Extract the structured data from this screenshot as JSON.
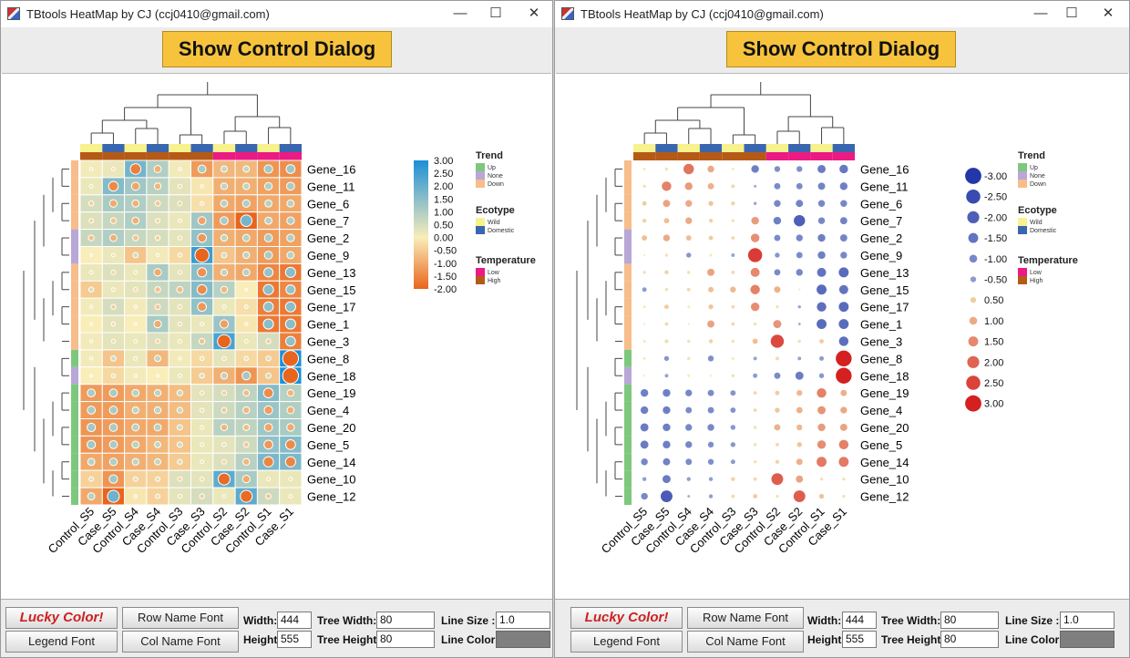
{
  "windows": [
    {
      "title": "TBtools HeatMap by CJ (ccj0410@gmail.com)",
      "show_button": "Show Control Dialog",
      "controls": {
        "lucky": "Lucky Color!",
        "legend_font": "Legend Font",
        "row_font": "Row Name Font",
        "col_font": "Col Name Font",
        "width_label": "Width:",
        "width_value": "444",
        "height_label": "Height:",
        "height_value": "555",
        "tree_width_label": "Tree Width:",
        "tree_width_value": "80",
        "tree_height_label": "Tree Height:",
        "tree_height_value": "80",
        "line_size_label": "Line Size :",
        "line_size_value": "1.0",
        "line_color_label": "Line Color:"
      }
    },
    {
      "title": "TBtools HeatMap by CJ (ccj0410@gmail.com)",
      "show_button": "Show Control Dialog",
      "controls": {
        "lucky": "Lucky Color!",
        "legend_font": "Legend Font",
        "row_font": "Row Name Font",
        "col_font": "Col Name Font",
        "width_label": "Width:",
        "width_value": "444",
        "height_label": "Height:",
        "height_value": "555",
        "tree_width_label": "Tree Width:",
        "tree_width_value": "80",
        "tree_height_label": "Tree Height:",
        "tree_height_value": "80",
        "line_size_label": "Line Size :",
        "line_size_value": "1.0",
        "line_color_label": "Line Color:"
      }
    }
  ],
  "window_buttons": {
    "minimize": "—",
    "maximize": "☐",
    "close": "✕"
  },
  "colors": {
    "up": "#7ec87e",
    "none": "#b9a7d6",
    "down": "#f7bd8a",
    "wild": "#f7f28e",
    "domestic": "#3a66b0",
    "low": "#ec1a83",
    "high": "#b55a16",
    "line_color": "#7f7f7f"
  },
  "chart_data": {
    "type": "heatmap",
    "columns": [
      "Control_S5",
      "Case_S5",
      "Control_S4",
      "Case_S4",
      "Control_S3",
      "Case_S3",
      "Control_S2",
      "Case_S2",
      "Control_S1",
      "Case_S1"
    ],
    "rows": [
      "Gene_16",
      "Gene_11",
      "Gene_6",
      "Gene_7",
      "Gene_2",
      "Gene_9",
      "Gene_13",
      "Gene_15",
      "Gene_17",
      "Gene_1",
      "Gene_3",
      "Gene_8",
      "Gene_18",
      "Gene_19",
      "Gene_4",
      "Gene_20",
      "Gene_5",
      "Gene_14",
      "Gene_10",
      "Gene_12"
    ],
    "values": [
      [
        0.1,
        0.2,
        1.8,
        1.0,
        0.1,
        -1.2,
        -0.8,
        -0.8,
        -1.3,
        -1.4
      ],
      [
        0.2,
        1.6,
        1.2,
        0.9,
        0.3,
        -0.1,
        -0.9,
        -0.9,
        -1.1,
        -1.2
      ],
      [
        0.5,
        1.1,
        1.0,
        0.6,
        0.4,
        -0.2,
        -1.0,
        -1.1,
        -1.0,
        -1.0
      ],
      [
        0.4,
        0.7,
        1.0,
        0.4,
        0.2,
        1.2,
        -1.2,
        -2.0,
        -1.0,
        -1.1
      ],
      [
        0.7,
        1.0,
        0.7,
        0.5,
        0.3,
        1.4,
        -0.9,
        -1.0,
        -1.2,
        -1.1
      ],
      [
        0.0,
        0.2,
        -0.6,
        0.1,
        -0.3,
        2.6,
        -0.6,
        -0.9,
        -1.2,
        -1.0
      ],
      [
        0.2,
        0.4,
        0.2,
        1.1,
        0.3,
        1.5,
        -0.9,
        -1.0,
        -1.5,
        -1.7
      ],
      [
        -0.5,
        0.2,
        0.3,
        0.7,
        0.8,
        1.6,
        0.9,
        0.0,
        -1.7,
        -1.5
      ],
      [
        0.1,
        0.5,
        0.1,
        0.6,
        0.3,
        1.4,
        0.2,
        -0.2,
        -1.6,
        -1.7
      ],
      [
        0.0,
        0.3,
        0.0,
        1.1,
        0.3,
        0.2,
        1.3,
        -0.1,
        -1.7,
        -1.7
      ],
      [
        0.1,
        0.3,
        0.2,
        0.4,
        0.2,
        0.7,
        2.4,
        0.2,
        0.5,
        -1.6
      ],
      [
        0.1,
        -0.6,
        0.2,
        -0.8,
        0.1,
        -0.3,
        0.3,
        -0.3,
        -0.5,
        3.0
      ],
      [
        0.0,
        -0.3,
        0.1,
        0.0,
        0.2,
        -0.5,
        -0.9,
        -1.3,
        -0.6,
        3.0
      ],
      [
        -1.2,
        -1.2,
        -1.0,
        -0.9,
        -0.7,
        0.3,
        0.5,
        0.8,
        1.6,
        0.9
      ],
      [
        -1.2,
        -1.2,
        -0.9,
        -0.9,
        -0.7,
        0.3,
        0.6,
        0.9,
        1.3,
        1.0
      ],
      [
        -1.3,
        -1.2,
        -1.0,
        -1.0,
        -0.6,
        0.2,
        0.9,
        0.8,
        1.2,
        1.1
      ],
      [
        -1.3,
        -1.2,
        -1.0,
        -0.8,
        -0.6,
        0.2,
        0.3,
        0.6,
        1.4,
        1.6
      ],
      [
        -1.0,
        -1.1,
        -0.9,
        -0.8,
        -0.5,
        0.2,
        0.4,
        0.9,
        1.7,
        1.7
      ],
      [
        -0.4,
        -1.3,
        -0.4,
        -0.4,
        0.4,
        0.3,
        2.1,
        1.1,
        0.2,
        0.2
      ],
      [
        -1.0,
        -2.1,
        -0.1,
        -0.4,
        0.3,
        0.5,
        0.2,
        2.1,
        0.6,
        0.2
      ]
    ],
    "color_scale": {
      "min": -2.0,
      "max": 3.0,
      "low_color": "#e8651d",
      "mid_color": "#f9edb9",
      "high_color": "#1d8fd6"
    },
    "colorbar_ticks": [
      "3.00",
      "2.50",
      "2.00",
      "1.50",
      "1.00",
      "0.50",
      "0.00",
      "-0.50",
      "-1.00",
      "-1.50",
      "-2.00"
    ],
    "size_legend": [
      "-3.00",
      "-2.50",
      "-2.00",
      "-1.50",
      "-1.00",
      "-0.50",
      "0.50",
      "1.00",
      "1.50",
      "2.00",
      "2.50",
      "3.00"
    ],
    "row_groups": {
      "trend": [
        "Down",
        "Down",
        "Down",
        "Down",
        "None",
        "None",
        "Down",
        "Down",
        "Down",
        "Down",
        "Down",
        "Up",
        "None",
        "Up",
        "Up",
        "Up",
        "Up",
        "Up",
        "Up",
        "Up"
      ]
    },
    "col_annotations": {
      "ecotype": [
        "Wild",
        "Domestic",
        "Wild",
        "Domestic",
        "Wild",
        "Domestic",
        "Wild",
        "Domestic",
        "Wild",
        "Domestic"
      ],
      "temperature": [
        "High",
        "High",
        "High",
        "High",
        "High",
        "High",
        "Low",
        "Low",
        "Low",
        "Low"
      ]
    },
    "legends": [
      {
        "title": "Trend",
        "items": [
          "Up",
          "None",
          "Down"
        ]
      },
      {
        "title": "Ecotype",
        "items": [
          "Wild",
          "Domestic"
        ]
      },
      {
        "title": "Temperature",
        "items": [
          "Low",
          "High"
        ]
      }
    ]
  }
}
